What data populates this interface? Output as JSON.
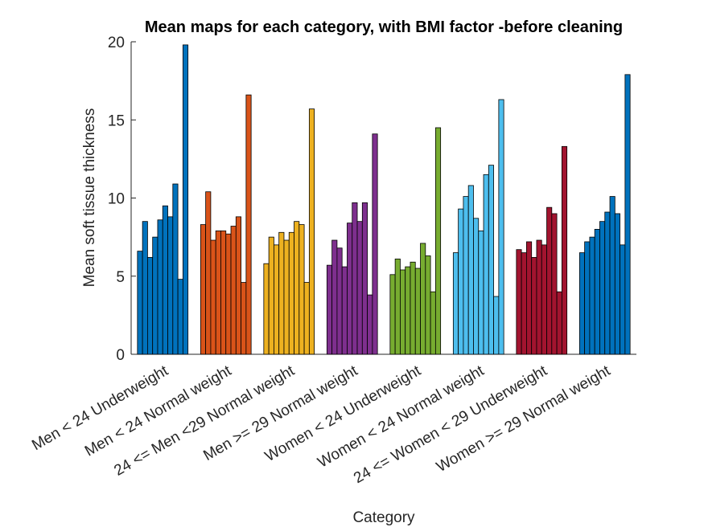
{
  "chart_data": {
    "type": "grouped-bar",
    "title": "Mean maps for each category, with BMI factor -before cleaning",
    "x_label": "Category",
    "y_label": "Mean soft tissue thickness",
    "categories": [
      "Men < 24 Underweight",
      "Men < 24 Normal weight",
      "24 <= Men <29 Normal weight",
      "Men >= 29 Normal weight",
      "Women < 24 Underweight",
      "Women < 24 Normal weight",
      "24 <= Women < 29 Underweight",
      "Women >= 29 Normal weight"
    ],
    "colors": [
      "#0072bd",
      "#d95319",
      "#edb120",
      "#7e2f8e",
      "#77ac30",
      "#4dbeee",
      "#a2142f",
      "#0072bd"
    ],
    "values": [
      [
        6.6,
        8.5,
        6.2,
        7.5,
        8.6,
        9.5,
        8.8,
        10.9,
        4.8,
        19.8
      ],
      [
        8.3,
        10.4,
        7.3,
        7.9,
        7.9,
        7.7,
        8.2,
        8.8,
        4.6,
        16.6
      ],
      [
        5.8,
        7.5,
        7.0,
        7.8,
        7.3,
        7.8,
        8.5,
        8.3,
        4.6,
        15.7
      ],
      [
        5.7,
        7.3,
        6.8,
        5.6,
        8.4,
        9.7,
        8.5,
        9.7,
        3.8,
        14.1
      ],
      [
        5.1,
        6.1,
        5.4,
        5.6,
        5.9,
        5.5,
        7.1,
        6.3,
        4.0,
        14.5
      ],
      [
        6.5,
        9.3,
        10.1,
        10.8,
        8.7,
        7.9,
        11.5,
        12.1,
        3.7,
        16.3
      ],
      [
        6.7,
        6.5,
        7.2,
        6.2,
        7.3,
        7.0,
        9.4,
        9.0,
        4.0,
        13.3
      ],
      [
        6.5,
        7.2,
        7.5,
        8.0,
        8.5,
        9.1,
        10.1,
        9.0,
        7.0,
        17.9
      ]
    ],
    "ylim": [
      0,
      20
    ],
    "yticks": [
      0,
      5,
      10,
      15,
      20
    ]
  }
}
